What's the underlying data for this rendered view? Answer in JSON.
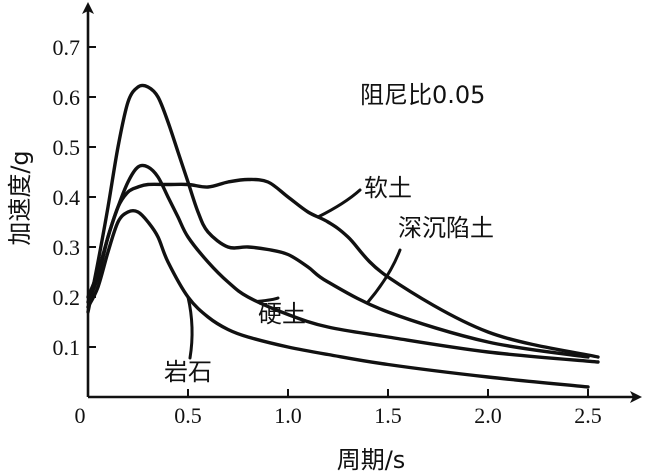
{
  "chart_data": {
    "type": "line",
    "title": "",
    "xlabel": "周期/s",
    "ylabel": "加速度/g",
    "xlim": [
      0,
      2.7
    ],
    "ylim": [
      0,
      0.77
    ],
    "x_ticks": [
      {
        "value": 0.5,
        "label": "0.5"
      },
      {
        "value": 1.0,
        "label": "1.0"
      },
      {
        "value": 1.5,
        "label": "1.5"
      },
      {
        "value": 2.0,
        "label": "2.0"
      },
      {
        "value": 2.5,
        "label": "2.5"
      }
    ],
    "y_ticks": [
      {
        "value": 0.1,
        "label": "0.1"
      },
      {
        "value": 0.2,
        "label": "0.2"
      },
      {
        "value": 0.3,
        "label": "0.3"
      },
      {
        "value": 0.4,
        "label": "0.4"
      },
      {
        "value": 0.5,
        "label": "0.5"
      },
      {
        "value": 0.6,
        "label": "0.6"
      },
      {
        "value": 0.7,
        "label": "0.7"
      }
    ],
    "origin_label": "0",
    "grid": false,
    "annotation": "阻尼比0.05",
    "series": [
      {
        "name": "岩石",
        "x": [
          0,
          0.05,
          0.1,
          0.15,
          0.2,
          0.25,
          0.3,
          0.35,
          0.4,
          0.5,
          0.6,
          0.7,
          0.8,
          1.0,
          1.2,
          1.5,
          2.0,
          2.5
        ],
        "y": [
          0.18,
          0.22,
          0.29,
          0.35,
          0.37,
          0.37,
          0.35,
          0.32,
          0.27,
          0.2,
          0.16,
          0.135,
          0.12,
          0.1,
          0.085,
          0.065,
          0.04,
          0.02
        ]
      },
      {
        "name": "硬土",
        "x": [
          0,
          0.05,
          0.1,
          0.15,
          0.2,
          0.25,
          0.3,
          0.35,
          0.4,
          0.45,
          0.5,
          0.6,
          0.7,
          0.8,
          1.0,
          1.2,
          1.5,
          2.0,
          2.55
        ],
        "y": [
          0.19,
          0.24,
          0.32,
          0.38,
          0.43,
          0.46,
          0.46,
          0.44,
          0.4,
          0.36,
          0.32,
          0.27,
          0.23,
          0.2,
          0.165,
          0.14,
          0.12,
          0.09,
          0.07
        ]
      },
      {
        "name": "深沉陷土",
        "x": [
          0,
          0.05,
          0.1,
          0.15,
          0.2,
          0.25,
          0.3,
          0.35,
          0.4,
          0.45,
          0.5,
          0.55,
          0.6,
          0.7,
          0.8,
          0.9,
          1.0,
          1.1,
          1.2,
          1.5,
          2.0,
          2.5
        ],
        "y": [
          0.17,
          0.27,
          0.38,
          0.5,
          0.59,
          0.62,
          0.62,
          0.6,
          0.55,
          0.49,
          0.43,
          0.37,
          0.33,
          0.3,
          0.3,
          0.295,
          0.285,
          0.26,
          0.23,
          0.17,
          0.11,
          0.08
        ]
      },
      {
        "name": "软土",
        "x": [
          0,
          0.05,
          0.1,
          0.15,
          0.2,
          0.25,
          0.3,
          0.4,
          0.5,
          0.6,
          0.7,
          0.8,
          0.9,
          1.0,
          1.1,
          1.2,
          1.3,
          1.5,
          2.0,
          2.55
        ],
        "y": [
          0.2,
          0.25,
          0.32,
          0.38,
          0.41,
          0.42,
          0.425,
          0.425,
          0.425,
          0.42,
          0.43,
          0.435,
          0.43,
          0.4,
          0.37,
          0.35,
          0.32,
          0.24,
          0.13,
          0.08
        ]
      }
    ]
  }
}
